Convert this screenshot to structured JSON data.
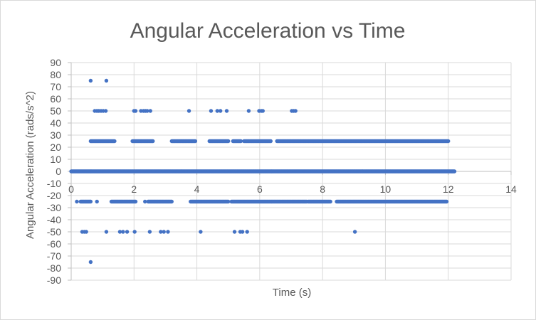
{
  "chart_data": {
    "type": "scatter",
    "title": "Angular Acceleration vs Time",
    "xlabel": "Time (s)",
    "ylabel": "Angular Acceleration  (rads/s^2)",
    "xlim": [
      0,
      14
    ],
    "ylim": [
      -90,
      90
    ],
    "x_ticks": [
      "0",
      "2",
      "4",
      "6",
      "8",
      "10",
      "12",
      "14"
    ],
    "y_ticks": [
      "90",
      "80",
      "70",
      "60",
      "50",
      "40",
      "30",
      "20",
      "10",
      "0",
      "-10",
      "-20",
      "-30",
      "-40",
      "-50",
      "-60",
      "-70",
      "-80",
      "-90"
    ],
    "grid": true,
    "legend": "none",
    "series_color": "#4472c4",
    "series": [
      {
        "points": [
          [
            0.62,
            75
          ],
          [
            1.12,
            75
          ],
          [
            0.75,
            50
          ],
          [
            0.82,
            50
          ],
          [
            0.88,
            50
          ],
          [
            0.95,
            50
          ],
          [
            1.02,
            50
          ],
          [
            1.1,
            50
          ],
          [
            2.0,
            50
          ],
          [
            2.05,
            50
          ],
          [
            2.22,
            50
          ],
          [
            2.3,
            50
          ],
          [
            2.36,
            50
          ],
          [
            2.42,
            50
          ],
          [
            2.52,
            50
          ],
          [
            3.75,
            50
          ],
          [
            4.45,
            50
          ],
          [
            4.65,
            50
          ],
          [
            4.75,
            50
          ],
          [
            4.95,
            50
          ],
          [
            5.65,
            50
          ],
          [
            5.98,
            50
          ],
          [
            6.05,
            50
          ],
          [
            6.1,
            50
          ],
          [
            7.02,
            50
          ],
          [
            7.08,
            50
          ],
          [
            7.14,
            50
          ],
          [
            0.35,
            -50
          ],
          [
            0.42,
            -50
          ],
          [
            0.48,
            -50
          ],
          [
            1.12,
            -50
          ],
          [
            1.55,
            -50
          ],
          [
            1.65,
            -50
          ],
          [
            1.78,
            -50
          ],
          [
            2.02,
            -50
          ],
          [
            2.5,
            -50
          ],
          [
            2.85,
            -50
          ],
          [
            2.95,
            -50
          ],
          [
            3.08,
            -50
          ],
          [
            4.12,
            -50
          ],
          [
            5.2,
            -50
          ],
          [
            5.38,
            -50
          ],
          [
            5.45,
            -50
          ],
          [
            5.6,
            -50
          ],
          [
            9.03,
            -50
          ],
          [
            0.62,
            -75
          ]
        ],
        "segments": [
          {
            "y": 25,
            "ranges": [
              [
                0.62,
                1.38
              ],
              [
                1.95,
                2.6
              ],
              [
                3.2,
                3.95
              ],
              [
                4.4,
                5.0
              ],
              [
                5.15,
                5.4
              ],
              [
                5.5,
                6.35
              ],
              [
                6.55,
                12.0
              ]
            ],
            "points_per_second": 38
          },
          {
            "y": 0,
            "ranges": [
              [
                0.0,
                12.2
              ]
            ],
            "points_per_second": 60
          },
          {
            "y": -25,
            "ranges": [
              [
                0.3,
                0.62
              ],
              [
                1.28,
                2.05
              ],
              [
                2.45,
                3.2
              ],
              [
                3.8,
                5.0
              ],
              [
                5.1,
                7.5
              ],
              [
                7.55,
                8.25
              ],
              [
                8.45,
                11.95
              ]
            ],
            "points_per_second": 38
          },
          {
            "y": -25,
            "points": [
              [
                0.18,
                -25
              ],
              [
                0.82,
                -25
              ],
              [
                2.35,
                -25
              ]
            ]
          }
        ]
      }
    ]
  }
}
